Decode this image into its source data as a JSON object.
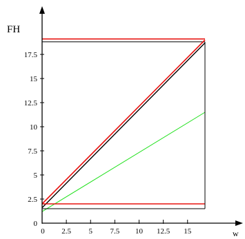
{
  "chart_data": {
    "type": "line",
    "ylabel": "FH",
    "xlabel": "w",
    "xlim": [
      0,
      16.5
    ],
    "ylim": [
      0,
      19.5
    ],
    "x_ticks": [
      0,
      2.5,
      5,
      7.5,
      10,
      12.5,
      15
    ],
    "x_tick_labels": [
      "0",
      "2.5",
      "5",
      "7.5",
      "10",
      "12.5",
      "15"
    ],
    "y_ticks": [
      0,
      2.5,
      5,
      7.5,
      10,
      12.5,
      15,
      17.5
    ],
    "y_tick_labels": [
      "0",
      "2.5",
      "5",
      "7.5",
      "10",
      "12.5",
      "15",
      "17.5"
    ],
    "grid": false,
    "series": [
      {
        "color": "#e8120f",
        "width": 1.6,
        "points": [
          [
            0,
            19.1
          ],
          [
            16.8,
            19.1
          ]
        ]
      },
      {
        "color": "#000000",
        "width": 1.0,
        "points": [
          [
            0,
            18.8
          ],
          [
            16.8,
            18.8
          ]
        ]
      },
      {
        "color": "#e8120f",
        "width": 1.6,
        "points": [
          [
            0,
            2.0
          ],
          [
            16.8,
            19.0
          ]
        ]
      },
      {
        "color": "#000000",
        "width": 1.4,
        "points": [
          [
            0,
            1.6
          ],
          [
            16.8,
            18.7
          ]
        ]
      },
      {
        "color": "#1fe01b",
        "width": 1.0,
        "points": [
          [
            0,
            1.2
          ],
          [
            16.8,
            11.5
          ]
        ]
      },
      {
        "color": "#e8120f",
        "width": 1.6,
        "points": [
          [
            0,
            2.0
          ],
          [
            16.8,
            2.0
          ]
        ]
      },
      {
        "color": "#000000",
        "width": 1.0,
        "points": [
          [
            0,
            1.5
          ],
          [
            16.8,
            1.5
          ]
        ]
      },
      {
        "color": "#000000",
        "width": 1.0,
        "points": [
          [
            16.8,
            18.8
          ],
          [
            16.8,
            1.5
          ]
        ]
      }
    ]
  }
}
